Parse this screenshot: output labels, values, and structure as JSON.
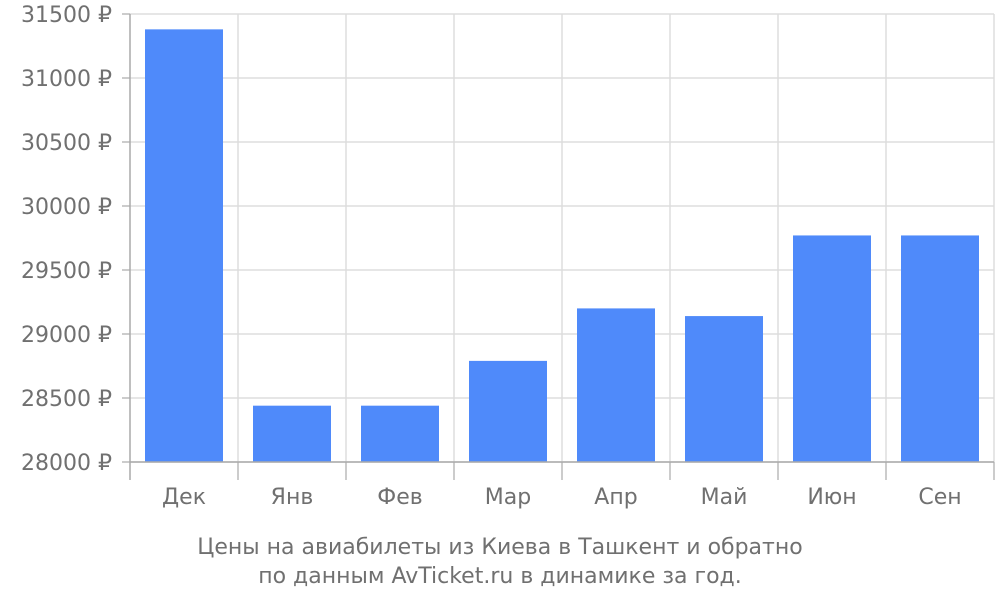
{
  "chart_data": {
    "type": "bar",
    "categories": [
      "Дек",
      "Янв",
      "Фев",
      "Мар",
      "Апр",
      "Май",
      "Июн",
      "Сен"
    ],
    "values": [
      31380,
      28440,
      28440,
      28790,
      29200,
      29140,
      29770,
      29770
    ],
    "y_ticks": [
      "28000 ₽",
      "28500 ₽",
      "29000 ₽",
      "29500 ₽",
      "30000 ₽",
      "30500 ₽",
      "31000 ₽",
      "31500 ₽"
    ],
    "ylim": [
      28000,
      31500
    ],
    "grid": true,
    "bar_color": "#4f8afa",
    "caption_lines": [
      "Цены на авиабилеты из Киева в Ташкент и обратно",
      "по данным AvTicket.ru в динамике за год."
    ]
  }
}
